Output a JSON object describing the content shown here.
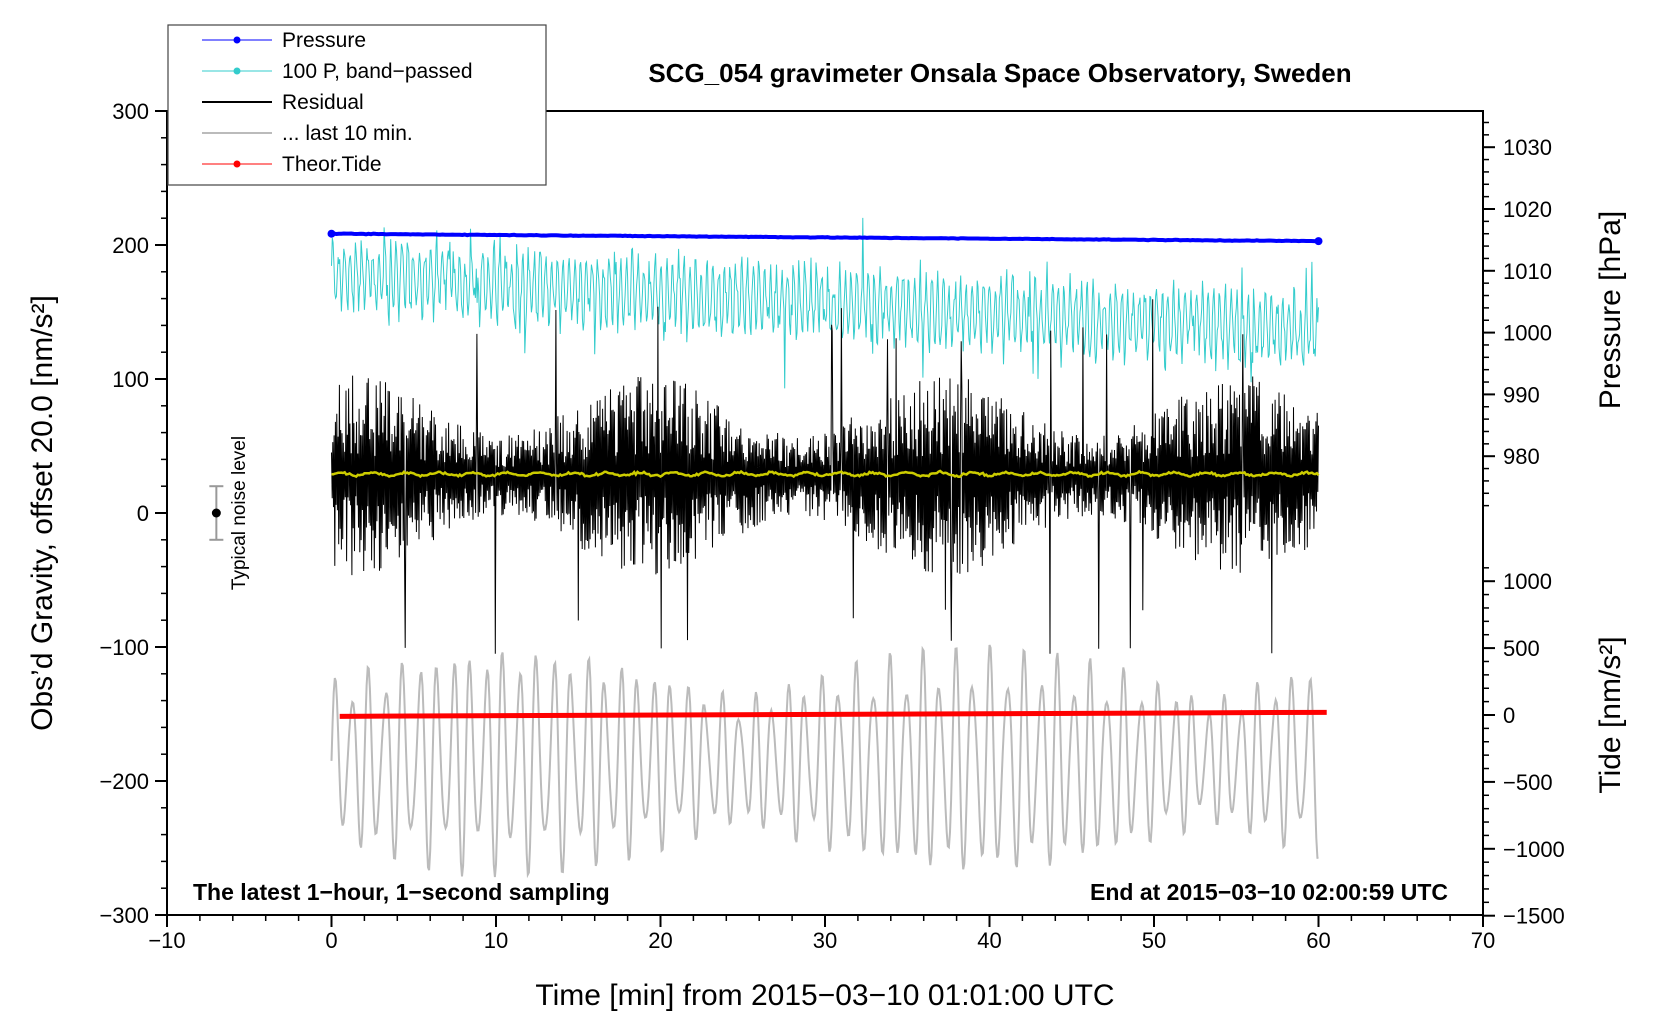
{
  "chart_data": {
    "type": "line",
    "title": "SCG_054 gravimeter Onsala Space Observatory, Sweden",
    "xlabel": "Time [min] from 2015−03−10 01:01:00 UTC",
    "ylabel_left": "Obs’d Gravity, offset 20.0 [nm/s²]",
    "ylabel_pressure": "Pressure [hPa]",
    "ylabel_tide": "Tide [nm/s²]",
    "xlim": [
      -10,
      70
    ],
    "ylim_left": [
      -300,
      300
    ],
    "x_ticks": [
      "−10",
      "0",
      "10",
      "20",
      "30",
      "40",
      "50",
      "60",
      "70"
    ],
    "y_left_ticks": [
      "300",
      "200",
      "100",
      "0",
      "−100",
      "−200",
      "−300"
    ],
    "pressure_ticks": [
      "1030",
      "1020",
      "1010",
      "1000",
      "990",
      "980"
    ],
    "tide_ticks": [
      "1000",
      "500",
      "0",
      "−500",
      "−1000",
      "−1500"
    ],
    "pressure_axis_values": [
      1030,
      1020,
      1010,
      1000,
      990,
      980
    ],
    "tide_axis_values": [
      1000,
      500,
      0,
      -500,
      -1000,
      -1500
    ],
    "annotation_left": "The latest 1−hour, 1−second sampling",
    "annotation_right": "End at 2015−03−10 02:00:59 UTC",
    "noise_label": "Typical noise level",
    "noise_bar": {
      "x": -7,
      "center": 0,
      "half_range": 20
    },
    "legend": [
      {
        "label": "Pressure",
        "color": "#0000ff",
        "marker": true
      },
      {
        "label": "100 P, band−passed",
        "color": "#33cccc",
        "marker": true
      },
      {
        "label": "Residual",
        "color": "#000000",
        "marker": false
      },
      {
        "label": "... last 10 min.",
        "color": "#bbbbbb",
        "marker": false
      },
      {
        "label": "Theor.Tide",
        "color": "#ff0000",
        "marker": true
      }
    ],
    "series": [
      {
        "name": "Pressure",
        "axis": "pressure_hPa",
        "color": "#0000ff",
        "x_range": [
          0,
          60
        ],
        "start": 1016.0,
        "end": 1014.8
      },
      {
        "name": "100 P, band-passed",
        "axis": "gravity_nm_s2",
        "color": "#33cccc",
        "x_range": [
          0,
          60
        ],
        "start_mean": 178,
        "end_mean": 135,
        "amplitude": 28
      },
      {
        "name": "Residual",
        "axis": "gravity_nm_s2",
        "color": "#000000",
        "x_range": [
          0,
          60
        ],
        "mean": 28,
        "amplitude": 75,
        "min": -105,
        "max": 165
      },
      {
        "name": "Residual smoothed",
        "axis": "gravity_nm_s2",
        "color": "#cccc00",
        "x_range": [
          0,
          60
        ],
        "mean": 29
      },
      {
        "name": "... last 10 min.",
        "axis": "gravity_nm_s2",
        "color": "#bbbbbb",
        "x_range": [
          0,
          60
        ],
        "mean": -185,
        "amplitude": 70,
        "min": -295,
        "max": -70
      },
      {
        "name": "Theor.Tide",
        "axis": "tide_nm_s2",
        "color": "#ff0000",
        "x_range": [
          0.5,
          60.5
        ],
        "start": -10,
        "end": 20
      }
    ]
  }
}
